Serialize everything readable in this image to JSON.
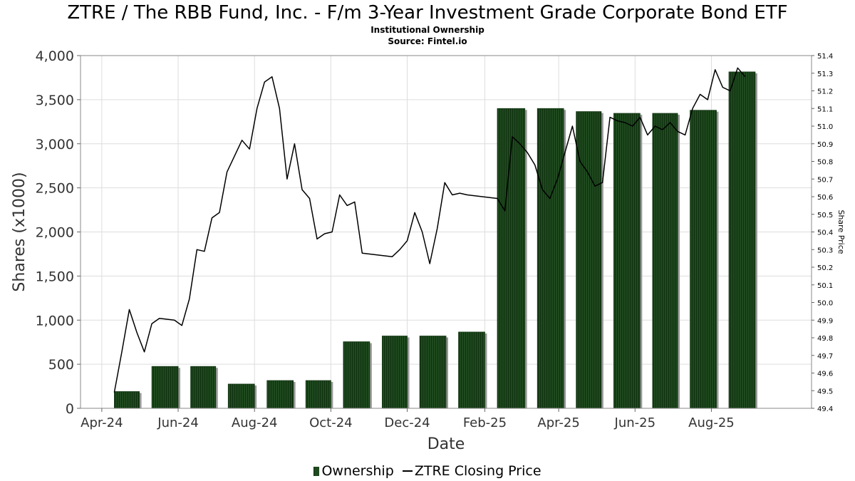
{
  "chart_data": {
    "type": "bar",
    "title": "ZTRE / The RBB Fund, Inc. - F/m 3-Year Investment Grade Corporate Bond ETF",
    "subtitle_lines": [
      "Institutional Ownership",
      "Source: Fintel.io"
    ],
    "xlabel": "Date",
    "ylabel": "Shares (x1000)",
    "y2label": "Share Price",
    "x_tick_labels": [
      "Apr-24",
      "Jun-24",
      "Aug-24",
      "Oct-24",
      "Dec-24",
      "Feb-25",
      "Apr-25",
      "Jun-25",
      "Aug-25"
    ],
    "x_range": [
      "2024-03-15",
      "2025-10-20"
    ],
    "ylim": [
      0,
      4000
    ],
    "y_ticks": [
      0,
      500,
      1000,
      1500,
      2000,
      2500,
      3000,
      3500,
      4000
    ],
    "y_tick_labels": [
      "0",
      "500",
      "1,000",
      "1,500",
      "2,000",
      "2,500",
      "3,000",
      "3,500",
      "4,000"
    ],
    "y2lim": [
      49.4,
      51.4
    ],
    "y2_ticks": [
      49.4,
      49.5,
      49.6,
      49.7,
      49.8,
      49.9,
      50.0,
      50.1,
      50.2,
      50.3,
      50.4,
      50.5,
      50.6,
      50.7,
      50.8,
      50.9,
      51.0,
      51.1,
      51.2,
      51.3,
      51.4
    ],
    "y2_tick_labels": [
      "49.4",
      "49.5",
      "49.6",
      "49.7",
      "49.8",
      "49.9",
      "50.0",
      "50.1",
      "50.2",
      "50.3",
      "50.4",
      "50.5",
      "50.6",
      "50.7",
      "50.8",
      "50.9",
      "51.0",
      "51.1",
      "51.2",
      "51.3",
      "51.4"
    ],
    "grid": true,
    "legend_position": "bottom",
    "series": [
      {
        "name": "Ownership",
        "type": "bar",
        "color": "#1f4a1f",
        "axis": "left",
        "points": [
          {
            "start": "2024-04-11",
            "end": "2024-05-01",
            "value": 190
          },
          {
            "start": "2024-05-11",
            "end": "2024-06-01",
            "value": 475
          },
          {
            "start": "2024-06-11",
            "end": "2024-07-01",
            "value": 475
          },
          {
            "start": "2024-07-11",
            "end": "2024-08-01",
            "value": 275
          },
          {
            "start": "2024-08-11",
            "end": "2024-09-01",
            "value": 315
          },
          {
            "start": "2024-09-11",
            "end": "2024-10-01",
            "value": 315
          },
          {
            "start": "2024-10-11",
            "end": "2024-11-01",
            "value": 755
          },
          {
            "start": "2024-11-11",
            "end": "2024-12-01",
            "value": 820
          },
          {
            "start": "2024-12-11",
            "end": "2025-01-01",
            "value": 820
          },
          {
            "start": "2025-01-11",
            "end": "2025-02-01",
            "value": 865
          },
          {
            "start": "2025-02-11",
            "end": "2025-03-05",
            "value": 3400
          },
          {
            "start": "2025-03-15",
            "end": "2025-04-05",
            "value": 3400
          },
          {
            "start": "2025-04-15",
            "end": "2025-05-05",
            "value": 3365
          },
          {
            "start": "2025-05-15",
            "end": "2025-06-05",
            "value": 3345
          },
          {
            "start": "2025-06-15",
            "end": "2025-07-05",
            "value": 3345
          },
          {
            "start": "2025-07-15",
            "end": "2025-08-05",
            "value": 3380
          },
          {
            "start": "2025-08-15",
            "end": "2025-09-05",
            "value": 3815
          }
        ]
      },
      {
        "name": "ZTRE Closing Price",
        "type": "line",
        "color": "#000000",
        "axis": "right",
        "points": [
          [
            "2024-04-11",
            49.49
          ],
          [
            "2024-04-17",
            49.72
          ],
          [
            "2024-04-23",
            49.96
          ],
          [
            "2024-04-29",
            49.83
          ],
          [
            "2024-05-05",
            49.72
          ],
          [
            "2024-05-11",
            49.88
          ],
          [
            "2024-05-17",
            49.91
          ],
          [
            "2024-05-29",
            49.9
          ],
          [
            "2024-06-04",
            49.87
          ],
          [
            "2024-06-10",
            50.02
          ],
          [
            "2024-06-16",
            50.3
          ],
          [
            "2024-06-22",
            50.29
          ],
          [
            "2024-06-28",
            50.48
          ],
          [
            "2024-07-04",
            50.51
          ],
          [
            "2024-07-10",
            50.74
          ],
          [
            "2024-07-16",
            50.83
          ],
          [
            "2024-07-22",
            50.92
          ],
          [
            "2024-07-28",
            50.87
          ],
          [
            "2024-08-03",
            51.1
          ],
          [
            "2024-08-09",
            51.25
          ],
          [
            "2024-08-15",
            51.28
          ],
          [
            "2024-08-21",
            51.1
          ],
          [
            "2024-08-27",
            50.7
          ],
          [
            "2024-09-02",
            50.9
          ],
          [
            "2024-09-08",
            50.64
          ],
          [
            "2024-09-14",
            50.59
          ],
          [
            "2024-09-20",
            50.36
          ],
          [
            "2024-09-26",
            50.39
          ],
          [
            "2024-10-02",
            50.4
          ],
          [
            "2024-10-08",
            50.61
          ],
          [
            "2024-10-14",
            50.55
          ],
          [
            "2024-10-20",
            50.57
          ],
          [
            "2024-10-26",
            50.28
          ],
          [
            "2024-11-19",
            50.26
          ],
          [
            "2024-11-25",
            50.3
          ],
          [
            "2024-12-01",
            50.35
          ],
          [
            "2024-12-07",
            50.51
          ],
          [
            "2024-12-13",
            50.4
          ],
          [
            "2024-12-19",
            50.22
          ],
          [
            "2024-12-25",
            50.42
          ],
          [
            "2024-12-31",
            50.68
          ],
          [
            "2025-01-06",
            50.61
          ],
          [
            "2025-01-12",
            50.62
          ],
          [
            "2025-01-18",
            50.61
          ],
          [
            "2025-02-11",
            50.59
          ],
          [
            "2025-02-17",
            50.52
          ],
          [
            "2025-02-23",
            50.94
          ],
          [
            "2025-03-01",
            50.9
          ],
          [
            "2025-03-07",
            50.85
          ],
          [
            "2025-03-13",
            50.78
          ],
          [
            "2025-03-19",
            50.64
          ],
          [
            "2025-03-25",
            50.59
          ],
          [
            "2025-03-31",
            50.7
          ],
          [
            "2025-04-06",
            50.85
          ],
          [
            "2025-04-12",
            51.0
          ],
          [
            "2025-04-18",
            50.8
          ],
          [
            "2025-04-24",
            50.74
          ],
          [
            "2025-04-30",
            50.66
          ],
          [
            "2025-05-06",
            50.68
          ],
          [
            "2025-05-12",
            51.05
          ],
          [
            "2025-05-18",
            51.03
          ],
          [
            "2025-05-24",
            51.02
          ],
          [
            "2025-05-30",
            51.0
          ],
          [
            "2025-06-05",
            51.05
          ],
          [
            "2025-06-11",
            50.95
          ],
          [
            "2025-06-17",
            51.0
          ],
          [
            "2025-06-23",
            50.98
          ],
          [
            "2025-06-29",
            51.02
          ],
          [
            "2025-07-05",
            50.97
          ],
          [
            "2025-07-11",
            50.95
          ],
          [
            "2025-07-17",
            51.1
          ],
          [
            "2025-07-23",
            51.18
          ],
          [
            "2025-07-29",
            51.15
          ],
          [
            "2025-08-04",
            51.32
          ],
          [
            "2025-08-10",
            51.22
          ],
          [
            "2025-08-16",
            51.2
          ],
          [
            "2025-08-22",
            51.33
          ],
          [
            "2025-08-28",
            51.28
          ]
        ]
      }
    ]
  }
}
